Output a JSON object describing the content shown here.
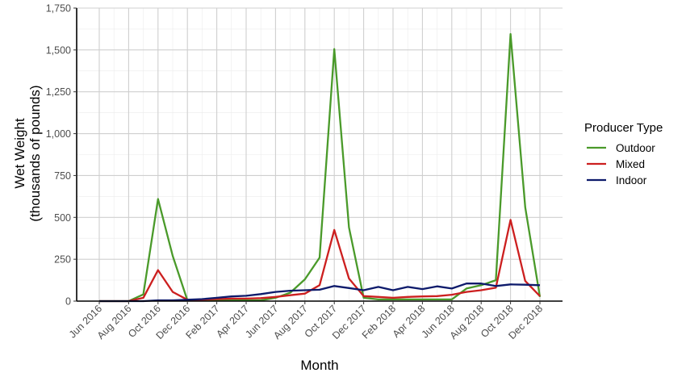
{
  "chart_data": {
    "type": "line",
    "title": "",
    "xlabel": "Month",
    "ylabel": [
      "Wet Weight",
      "(thousands of pounds)"
    ],
    "ylim": [
      0,
      1750
    ],
    "yticks": [
      0,
      250,
      500,
      750,
      1000,
      1250,
      1500,
      1750
    ],
    "ytick_labels": [
      "0",
      "250",
      "500",
      "750",
      "1,000",
      "1,250",
      "1,500",
      "1,750"
    ],
    "xtick_labels": [
      "Jun 2016",
      "Aug 2016",
      "Oct 2016",
      "Dec 2016",
      "Feb 2017",
      "Apr 2017",
      "Jun 2017",
      "Aug 2017",
      "Oct 2017",
      "Dec 2017",
      "Feb 2018",
      "Apr 2018",
      "Jun 2018",
      "Aug 2018",
      "Oct 2018",
      "Dec 2018"
    ],
    "x": [
      "Jun 2016",
      "Jul 2016",
      "Aug 2016",
      "Sep 2016",
      "Oct 2016",
      "Nov 2016",
      "Dec 2016",
      "Jan 2017",
      "Feb 2017",
      "Mar 2017",
      "Apr 2017",
      "May 2017",
      "Jun 2017",
      "Jul 2017",
      "Aug 2017",
      "Sep 2017",
      "Oct 2017",
      "Nov 2017",
      "Dec 2017",
      "Jan 2018",
      "Feb 2018",
      "Mar 2018",
      "Apr 2018",
      "May 2018",
      "Jun 2018",
      "Jul 2018",
      "Aug 2018",
      "Sep 2018",
      "Oct 2018",
      "Nov 2018",
      "Dec 2018"
    ],
    "grid": true,
    "legend": {
      "title": "Producer Type",
      "position": "right"
    },
    "series": [
      {
        "name": "Outdoor",
        "color": "#4a9a2a",
        "values": [
          0,
          0,
          0,
          40,
          610,
          270,
          5,
          5,
          5,
          5,
          5,
          5,
          20,
          50,
          130,
          260,
          1505,
          440,
          20,
          10,
          10,
          10,
          10,
          10,
          10,
          75,
          95,
          125,
          1595,
          560,
          25
        ]
      },
      {
        "name": "Mixed",
        "color": "#cc1f1f",
        "values": [
          0,
          0,
          0,
          20,
          185,
          55,
          8,
          8,
          12,
          15,
          15,
          18,
          25,
          35,
          45,
          95,
          425,
          135,
          30,
          25,
          20,
          25,
          28,
          30,
          38,
          55,
          65,
          80,
          485,
          120,
          30
        ]
      },
      {
        "name": "Indoor",
        "color": "#0d1a6b",
        "values": [
          0,
          0,
          0,
          0,
          5,
          5,
          8,
          12,
          20,
          28,
          32,
          42,
          55,
          62,
          65,
          68,
          90,
          78,
          65,
          85,
          65,
          85,
          72,
          88,
          75,
          105,
          105,
          90,
          100,
          98,
          95
        ]
      }
    ]
  }
}
